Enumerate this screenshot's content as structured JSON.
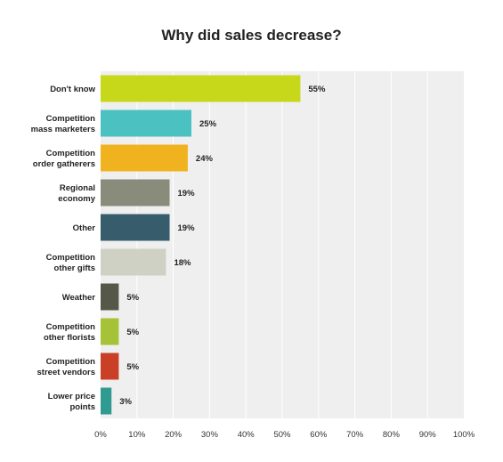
{
  "chart_data": {
    "type": "bar",
    "orientation": "horizontal",
    "title": "Why did sales decrease?",
    "xlabel": "",
    "ylabel": "",
    "xlim": [
      0,
      100
    ],
    "grid": true,
    "legend": "none",
    "categories": [
      "Don't know",
      "Competition\nmass marketers",
      "Competition\norder gatherers",
      "Regional\neconomy",
      "Other",
      "Competition\nother gifts",
      "Weather",
      "Competition\nother florists",
      "Competition\nstreet vendors",
      "Lower price\npoints"
    ],
    "values": [
      55,
      25,
      24,
      19,
      19,
      18,
      5,
      5,
      5,
      3
    ],
    "value_labels": [
      "55%",
      "25%",
      "24%",
      "19%",
      "19%",
      "18%",
      "5%",
      "5%",
      "5%",
      "3%"
    ],
    "colors": [
      "#c7d81b",
      "#4cc1c1",
      "#f0b21f",
      "#8a8c7b",
      "#375d6d",
      "#cfd1c4",
      "#555849",
      "#a6c237",
      "#c94027",
      "#2f9a8f"
    ],
    "ticks": [
      0,
      10,
      20,
      30,
      40,
      50,
      60,
      70,
      80,
      90,
      100
    ],
    "tick_labels": [
      "0%",
      "10%",
      "20%",
      "30%",
      "40%",
      "50%",
      "60%",
      "70%",
      "80%",
      "90%",
      "100%"
    ],
    "plot_background": "#efefef",
    "grid_color": "#ffffff"
  }
}
